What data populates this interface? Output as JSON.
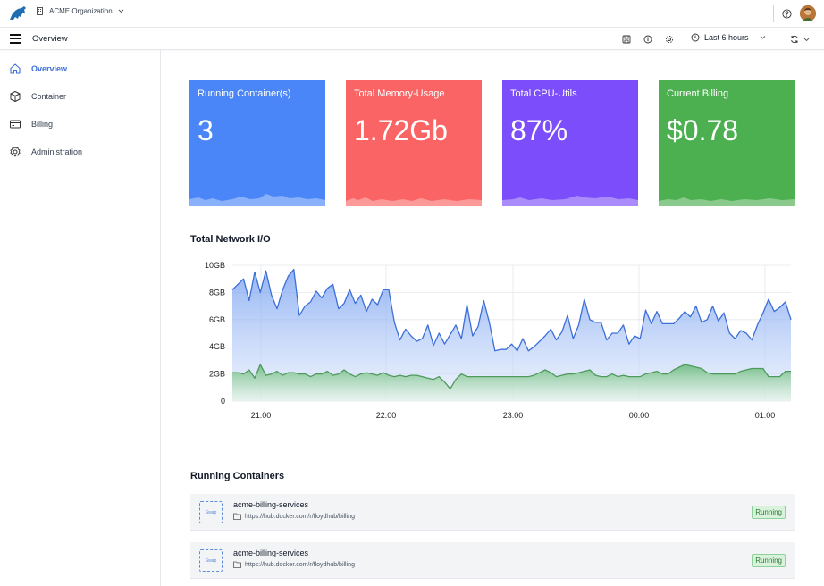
{
  "header": {
    "org_name": "ACME Organization"
  },
  "subbar": {
    "page_title": "Overview",
    "time_range": "Last 6 hours"
  },
  "sidebar": {
    "items": [
      {
        "label": "Overview",
        "icon": "home-icon",
        "active": true
      },
      {
        "label": "Container",
        "icon": "box-icon",
        "active": false
      },
      {
        "label": "Billing",
        "icon": "credit-card-icon",
        "active": false
      },
      {
        "label": "Administration",
        "icon": "gear-icon",
        "active": false
      }
    ]
  },
  "cards": [
    {
      "title": "Running Container(s)",
      "value": "3",
      "color": "#4a86f7"
    },
    {
      "title": "Total Memory-Usage",
      "value": "1.72Gb",
      "color": "#fb6464"
    },
    {
      "title": "Total CPU-Utils",
      "value": "87%",
      "color": "#7c4dfa"
    },
    {
      "title": "Current Billing",
      "value": "$0.78",
      "color": "#4caf50"
    }
  ],
  "network": {
    "title": "Total Network I/O",
    "y_ticks": [
      "10GB",
      "8GB",
      "6GB",
      "4GB",
      "2GB",
      "0"
    ],
    "x_ticks": [
      "21:00",
      "22:00",
      "23:00",
      "00:00",
      "01:00"
    ]
  },
  "chart_data": {
    "type": "area",
    "title": "Total Network I/O",
    "ylabel": "",
    "xlabel": "",
    "ylim": [
      0,
      10
    ],
    "y_unit": "GB",
    "x_ticks": [
      "21:00",
      "22:00",
      "23:00",
      "00:00",
      "01:00"
    ],
    "series": [
      {
        "color": "#3d6fd8",
        "values": [
          8.2,
          8.6,
          9.0,
          7.4,
          9.5,
          8.0,
          9.6,
          7.8,
          6.8,
          8.2,
          9.2,
          9.7,
          6.3,
          7.0,
          7.3,
          8.1,
          7.6,
          8.3,
          8.6,
          6.8,
          7.2,
          8.2,
          7.2,
          7.8,
          6.6,
          7.5,
          7.1,
          8.2,
          8.2,
          5.8,
          4.5,
          5.3,
          4.8,
          4.4,
          4.6,
          5.6,
          4.1,
          5.0,
          4.2,
          4.9,
          5.6,
          4.6,
          7.1,
          4.8,
          5.5,
          7.4,
          5.8,
          3.7,
          3.8,
          3.8,
          4.2,
          3.7,
          4.6,
          3.7,
          4.0,
          4.4,
          4.8,
          5.3,
          4.5,
          5.1,
          6.3,
          4.6,
          5.6,
          7.5,
          6.0,
          5.8,
          5.8,
          4.5,
          5.0,
          5.0,
          5.6,
          4.2,
          4.8,
          4.6,
          6.7,
          5.7,
          6.6,
          5.7,
          5.7,
          5.7,
          6.1,
          6.6,
          6.2,
          7.0,
          5.8,
          6.0,
          7.0,
          5.9,
          6.5,
          5.0,
          4.6,
          5.2,
          5.0,
          4.5,
          5.6,
          6.5,
          7.5,
          6.6,
          6.9,
          7.3,
          6.0
        ]
      },
      {
        "color": "#4e9a5b",
        "values": [
          2.1,
          2.1,
          2.0,
          2.3,
          1.7,
          2.7,
          1.9,
          2.0,
          2.2,
          1.9,
          2.1,
          2.1,
          2.0,
          2.0,
          1.8,
          2.0,
          2.0,
          2.2,
          1.9,
          2.0,
          2.3,
          2.0,
          1.8,
          2.0,
          2.1,
          2.0,
          1.9,
          2.1,
          1.9,
          1.8,
          1.9,
          1.8,
          1.9,
          1.9,
          1.8,
          1.7,
          1.6,
          1.8,
          1.4,
          0.9,
          1.6,
          2.0,
          1.8,
          1.8,
          1.8,
          1.8,
          1.8,
          1.8,
          1.8,
          1.8,
          1.8,
          1.8,
          1.8,
          1.8,
          1.9,
          2.1,
          2.3,
          2.1,
          1.8,
          1.9,
          2.0,
          2.0,
          2.1,
          2.2,
          2.3,
          1.9,
          1.8,
          1.8,
          2.0,
          1.8,
          1.9,
          1.8,
          1.8,
          1.8,
          2.0,
          2.1,
          2.2,
          2.0,
          2.0,
          2.3,
          2.5,
          2.7,
          2.6,
          2.5,
          2.4,
          2.1,
          2.0,
          2.0,
          2.0,
          2.0,
          2.0,
          2.2,
          2.3,
          2.4,
          2.4,
          2.4,
          1.8,
          1.8,
          1.8,
          2.2,
          2.2
        ]
      }
    ]
  },
  "containers": {
    "title": "Running Containers",
    "rows": [
      {
        "swap_label": "Swap",
        "name": "acme-billing-services",
        "url": "https://hub.docker.com/r/floydhub/billing",
        "status": "Running"
      },
      {
        "swap_label": "Swap",
        "name": "acme-billing-services",
        "url": "https://hub.docker.com/r/floydhub/billing",
        "status": "Running"
      }
    ]
  }
}
